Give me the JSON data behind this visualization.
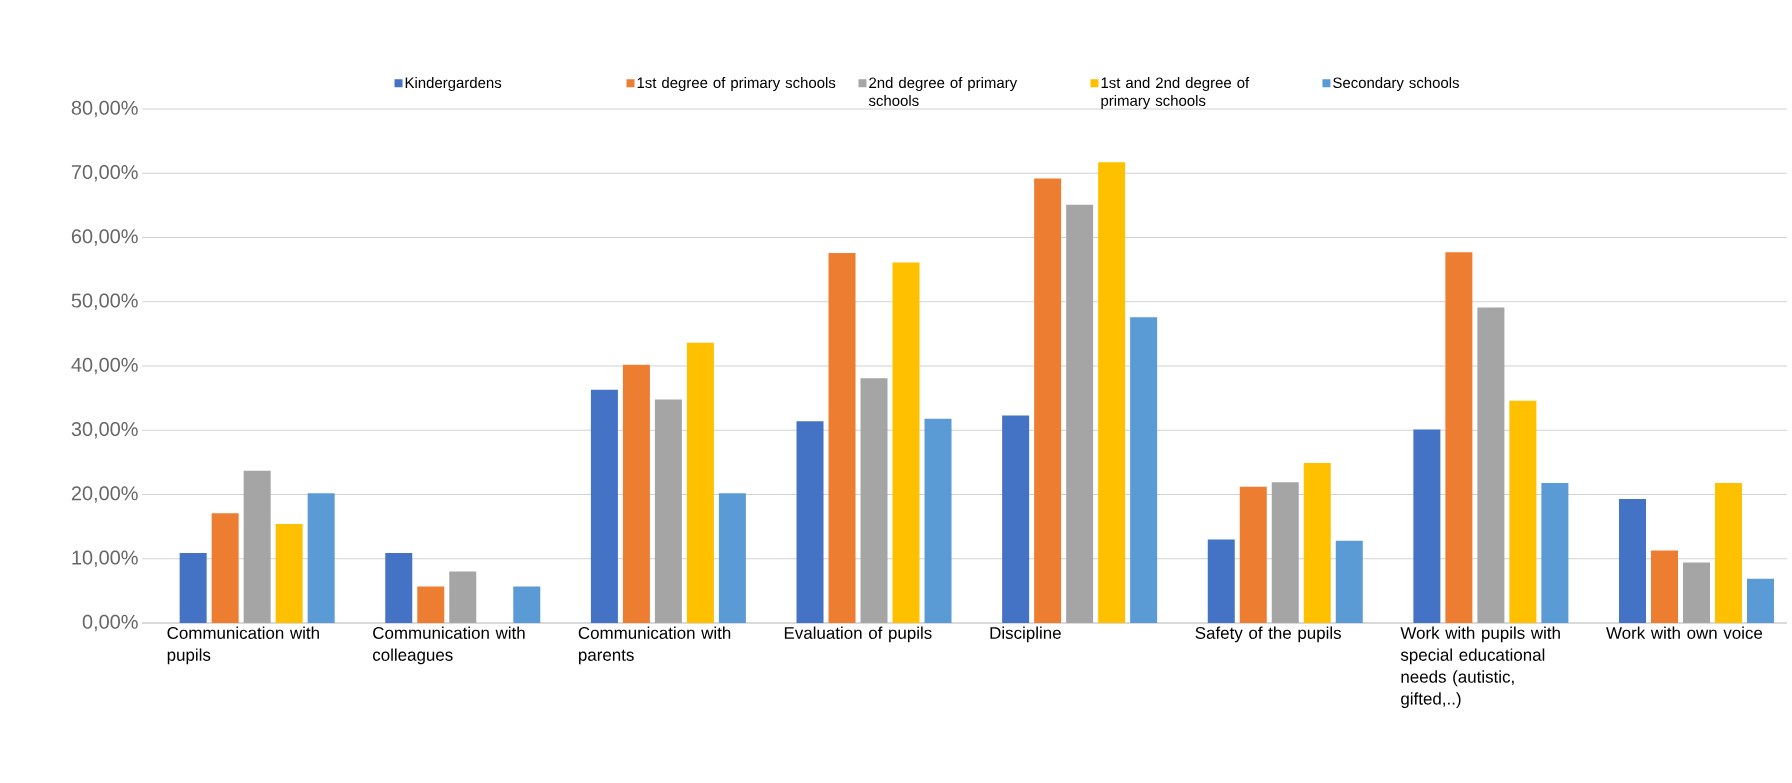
{
  "chart_data": {
    "type": "bar",
    "categories": [
      "Communication with pupils",
      "Communication with colleagues",
      "Communication with parents",
      "Evaluation of pupils",
      "Discipline",
      "Safety of the pupils",
      "Work with pupils with special educational needs (autistic, gifted,..)",
      "Work with own voice"
    ],
    "series": [
      {
        "name": "Kindergardens",
        "color": "#4472c4",
        "values": [
          10.9,
          10.9,
          36.3,
          31.4,
          32.3,
          13.0,
          30.1,
          19.3
        ]
      },
      {
        "name": "1st degree of primary schools",
        "color": "#ed7d31",
        "values": [
          17.1,
          5.7,
          40.2,
          57.6,
          69.2,
          21.2,
          57.7,
          11.3
        ]
      },
      {
        "name": "2nd degree of primary schools",
        "color": "#a5a5a5",
        "values": [
          23.7,
          8.0,
          34.8,
          38.1,
          65.1,
          21.9,
          49.1,
          9.4
        ]
      },
      {
        "name": "1st and 2nd degree of primary schools",
        "color": "#ffc000",
        "values": [
          15.4,
          null,
          43.6,
          56.1,
          71.7,
          24.9,
          34.6,
          21.8
        ]
      },
      {
        "name": "Secondary schools",
        "color": "#5b9bd5",
        "values": [
          20.2,
          5.7,
          20.2,
          31.8,
          47.6,
          12.8,
          21.8,
          6.9
        ]
      }
    ],
    "ylim": [
      0,
      80
    ],
    "yticks": [
      {
        "value": 0,
        "label": "0,00%"
      },
      {
        "value": 10,
        "label": "10,00%"
      },
      {
        "value": 20,
        "label": "20,00%"
      },
      {
        "value": 30,
        "label": "30,00%"
      },
      {
        "value": 40,
        "label": "40,00%"
      },
      {
        "value": 50,
        "label": "50,00%"
      },
      {
        "value": 60,
        "label": "60,00%"
      },
      {
        "value": 70,
        "label": "70,00%"
      },
      {
        "value": 80,
        "label": "80,00%"
      }
    ],
    "grid": "y",
    "legend": "top"
  }
}
